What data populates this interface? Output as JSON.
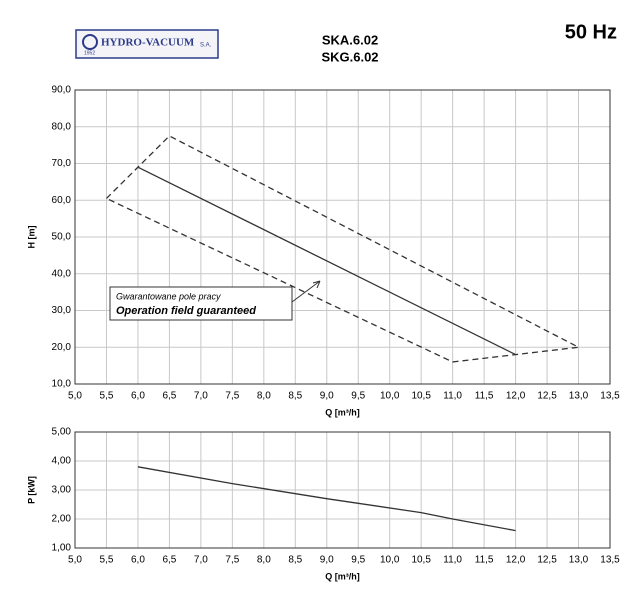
{
  "header": {
    "logo": "HYDRO-VACUUM",
    "logo_suffix": "S.A.",
    "logo_year": "1952",
    "model_1": "SKA.6.02",
    "model_2": "SKG.6.02",
    "frequency": "50 Hz"
  },
  "chart_data": [
    {
      "type": "line",
      "xlabel": "Q [m³/h]",
      "ylabel": "H [m]",
      "grid": true,
      "xlim": [
        5,
        13.5
      ],
      "ylim": [
        10,
        90
      ],
      "xticks": [
        {
          "value": 5,
          "label": "5,0"
        },
        {
          "value": 5.5,
          "label": "5,5"
        },
        {
          "value": 6,
          "label": "6,0"
        },
        {
          "value": 6.5,
          "label": "6,5"
        },
        {
          "value": 7,
          "label": "7,0"
        },
        {
          "value": 7.5,
          "label": "7,5"
        },
        {
          "value": 8,
          "label": "8,0"
        },
        {
          "value": 8.5,
          "label": "8,5"
        },
        {
          "value": 9,
          "label": "9,0"
        },
        {
          "value": 9.5,
          "label": "9,5"
        },
        {
          "value": 10,
          "label": "10,0"
        },
        {
          "value": 10.5,
          "label": "10,5"
        },
        {
          "value": 11,
          "label": "11,0"
        },
        {
          "value": 11.5,
          "label": "11,5"
        },
        {
          "value": 12,
          "label": "12,0"
        },
        {
          "value": 12.5,
          "label": "12,5"
        },
        {
          "value": 13,
          "label": "13,0"
        },
        {
          "value": 13.5,
          "label": "13,5"
        }
      ],
      "yticks": [
        {
          "value": 10,
          "label": "10,0"
        },
        {
          "value": 20,
          "label": "20,0"
        },
        {
          "value": 30,
          "label": "30,0"
        },
        {
          "value": 40,
          "label": "40,0"
        },
        {
          "value": 50,
          "label": "50,0"
        },
        {
          "value": 60,
          "label": "60,0"
        },
        {
          "value": 70,
          "label": "70,0"
        },
        {
          "value": 80,
          "label": "80,0"
        },
        {
          "value": 90,
          "label": "90,0"
        }
      ],
      "series": [
        {
          "x": [
            6,
            12
          ],
          "values": [
            69,
            18
          ],
          "color": "#333333",
          "dash": false
        },
        {
          "x": [
            5.5,
            6.5,
            13,
            12,
            11,
            5.5
          ],
          "values": [
            60.5,
            77.5,
            20,
            18,
            16,
            60.5
          ],
          "color": "#333333",
          "dash": true
        }
      ],
      "annotations": [
        "Gwarantowane pole pracy",
        "Operation field guaranteed"
      ]
    },
    {
      "type": "line",
      "xlabel": "Q [m³/h]",
      "ylabel": "P [kW]",
      "grid": true,
      "xlim": [
        5,
        13.5
      ],
      "ylim": [
        1,
        5
      ],
      "xticks": [
        {
          "value": 5,
          "label": "5,0"
        },
        {
          "value": 5.5,
          "label": "5,5"
        },
        {
          "value": 6,
          "label": "6,0"
        },
        {
          "value": 6.5,
          "label": "6,5"
        },
        {
          "value": 7,
          "label": "7,0"
        },
        {
          "value": 7.5,
          "label": "7,5"
        },
        {
          "value": 8,
          "label": "8,0"
        },
        {
          "value": 8.5,
          "label": "8,5"
        },
        {
          "value": 9,
          "label": "9,0"
        },
        {
          "value": 9.5,
          "label": "9,5"
        },
        {
          "value": 10,
          "label": "10,0"
        },
        {
          "value": 10.5,
          "label": "10,5"
        },
        {
          "value": 11,
          "label": "11,0"
        },
        {
          "value": 11.5,
          "label": "11,5"
        },
        {
          "value": 12,
          "label": "12,0"
        },
        {
          "value": 12.5,
          "label": "12,5"
        },
        {
          "value": 13,
          "label": "13,0"
        },
        {
          "value": 13.5,
          "label": "13,5"
        }
      ],
      "yticks": [
        {
          "value": 1,
          "label": "1,00"
        },
        {
          "value": 2,
          "label": "2,00"
        },
        {
          "value": 3,
          "label": "3,00"
        },
        {
          "value": 4,
          "label": "4,00"
        },
        {
          "value": 5,
          "label": "5,00"
        }
      ],
      "series": [
        {
          "x": [
            6,
            7.5,
            9,
            10.5,
            11,
            12
          ],
          "values": [
            3.8,
            3.22,
            2.7,
            2.22,
            2,
            1.6
          ],
          "color": "#333333",
          "dash": false
        }
      ]
    }
  ]
}
